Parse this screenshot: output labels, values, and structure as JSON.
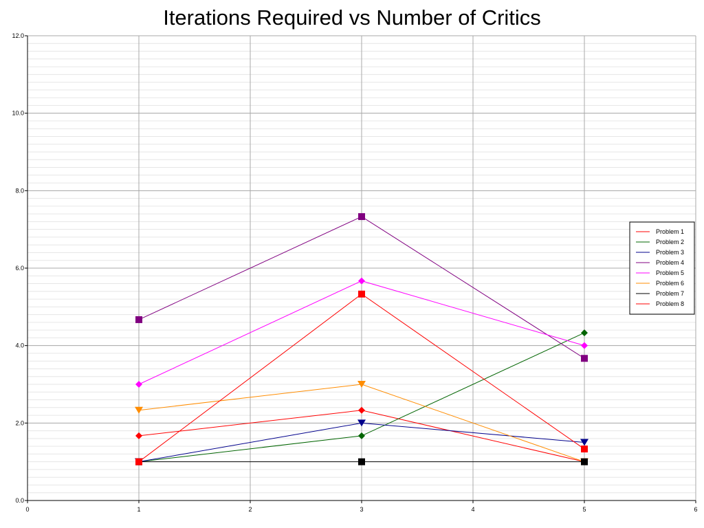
{
  "chart_data": {
    "type": "line",
    "title": "Iterations Required vs Number of Critics",
    "xlabel": "",
    "ylabel": "",
    "xlim": [
      0,
      6
    ],
    "ylim": [
      0,
      12
    ],
    "x_ticks": [
      "0",
      "1",
      "2",
      "3",
      "4",
      "5",
      "6"
    ],
    "y_ticks": [
      "0.0",
      "2.0",
      "4.0",
      "6.0",
      "8.0",
      "10.0",
      "12.0"
    ],
    "grid": true,
    "legend_position": "right",
    "x": [
      1,
      3,
      5
    ],
    "series": [
      {
        "name": "Problem 1",
        "values": [
          1.67,
          2.33,
          1.0
        ],
        "color": "#ff0000",
        "marker": "diamond"
      },
      {
        "name": "Problem 2",
        "values": [
          1.0,
          1.67,
          4.33
        ],
        "color": "#006400",
        "marker": "diamond"
      },
      {
        "name": "Problem 3",
        "values": [
          1.0,
          2.0,
          1.5
        ],
        "color": "#00008b",
        "marker": "triangle-down"
      },
      {
        "name": "Problem 4",
        "values": [
          4.67,
          7.33,
          3.67
        ],
        "color": "#800080",
        "marker": "square"
      },
      {
        "name": "Problem 5",
        "values": [
          3.0,
          5.67,
          4.0
        ],
        "color": "#ff00ff",
        "marker": "diamond"
      },
      {
        "name": "Problem 6",
        "values": [
          2.33,
          3.0,
          1.0
        ],
        "color": "#ff8c00",
        "marker": "triangle-down"
      },
      {
        "name": "Problem 7",
        "values": [
          1.0,
          1.0,
          1.0
        ],
        "color": "#000000",
        "marker": "square"
      },
      {
        "name": "Problem 8",
        "values": [
          1.0,
          5.33,
          1.33
        ],
        "color": "#ff0000",
        "marker": "square"
      }
    ]
  }
}
